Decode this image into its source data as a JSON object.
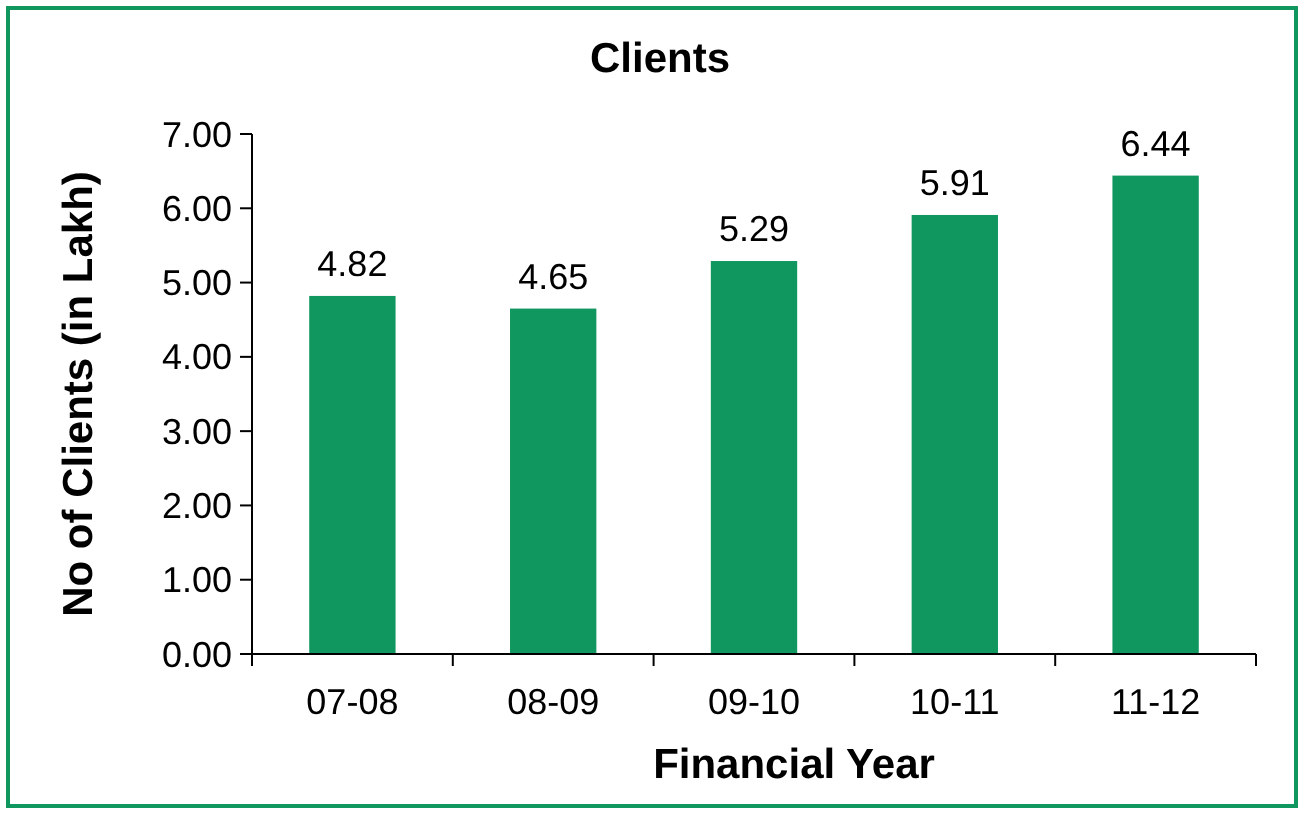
{
  "chart_data": {
    "type": "bar",
    "title": "Clients",
    "xlabel": "Financial Year",
    "ylabel": "No of Clients (in Lakh)",
    "categories": [
      "07-08",
      "08-09",
      "09-10",
      "10-11",
      "11-12"
    ],
    "values": [
      4.82,
      4.65,
      5.29,
      5.91,
      6.44
    ],
    "color": "#10975f",
    "ylim": [
      0,
      7
    ],
    "yticks": [
      {
        "value": 0,
        "label": "0.00"
      },
      {
        "value": 1,
        "label": "1.00"
      },
      {
        "value": 2,
        "label": "2.00"
      },
      {
        "value": 3,
        "label": "3.00"
      },
      {
        "value": 4,
        "label": "4.00"
      },
      {
        "value": 5,
        "label": "5.00"
      },
      {
        "value": 6,
        "label": "6.00"
      },
      {
        "value": 7,
        "label": "7.00"
      }
    ],
    "data_labels": true,
    "grid": false
  }
}
